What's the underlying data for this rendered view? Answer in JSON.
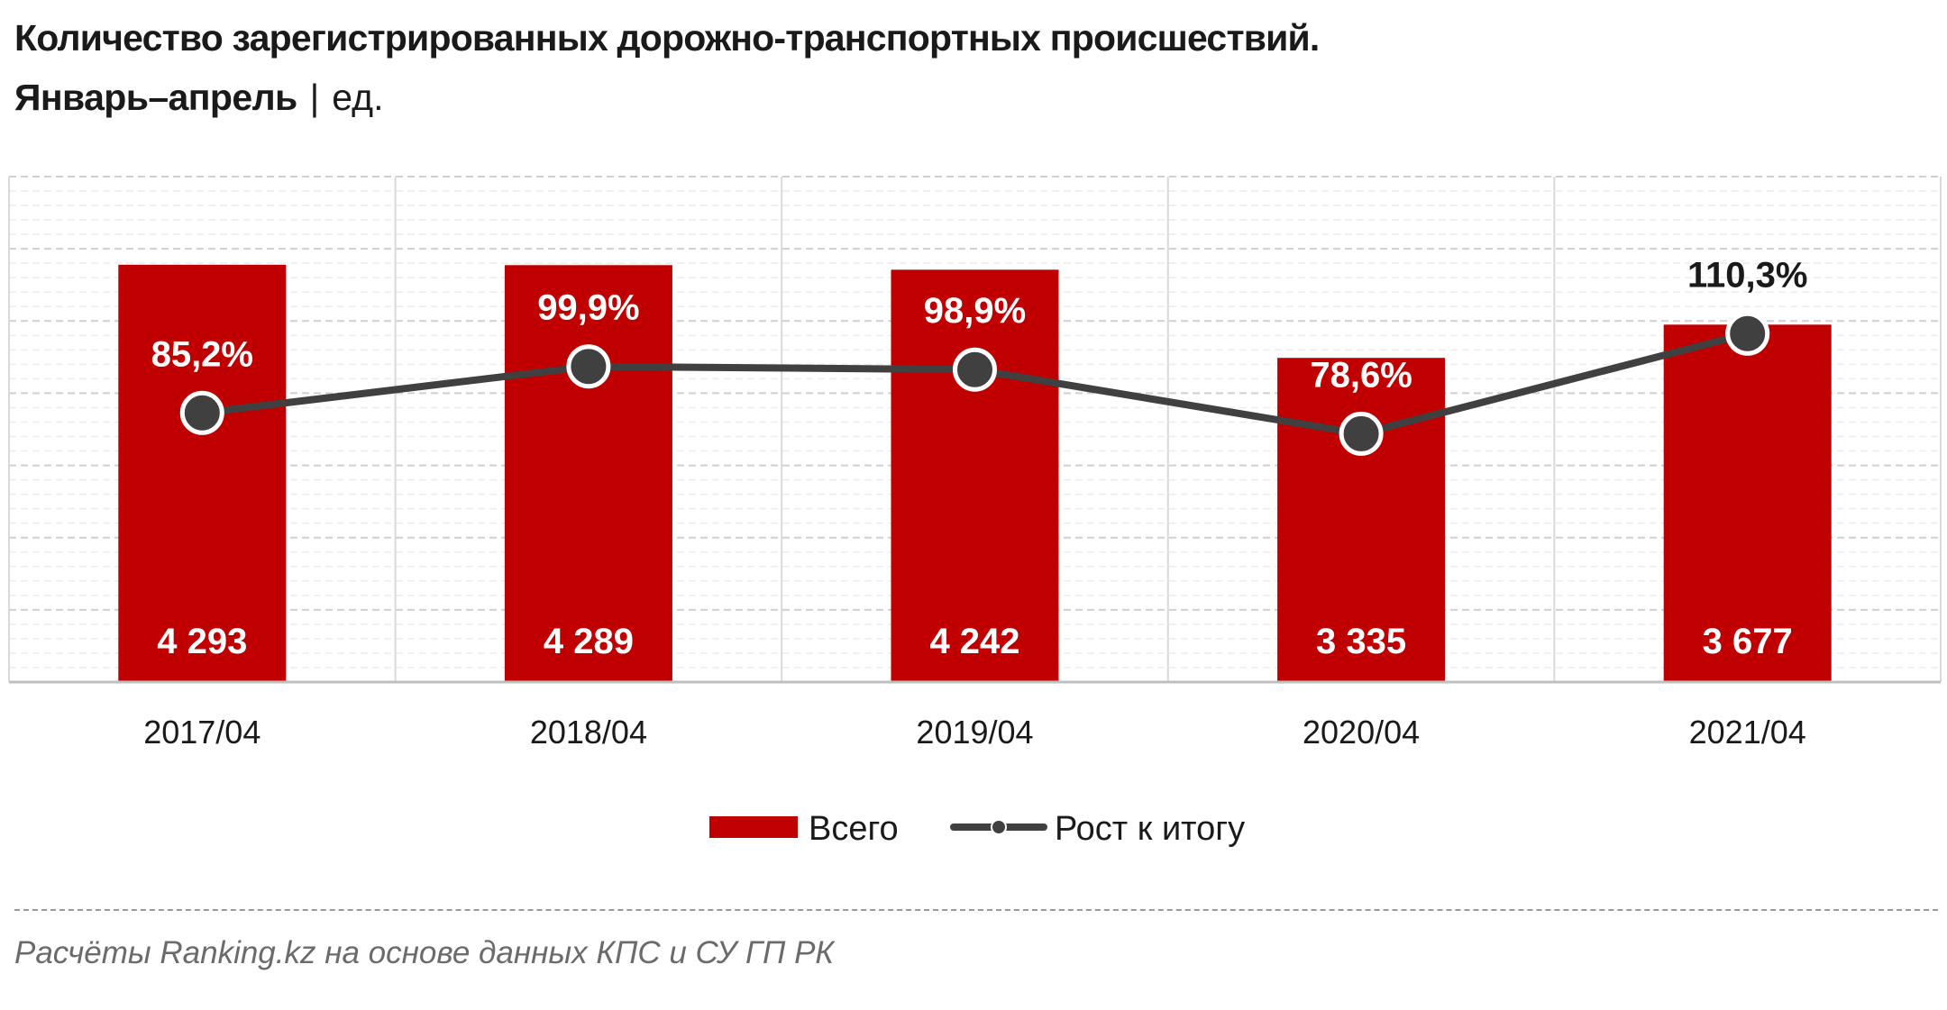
{
  "header": {
    "title": "Количество зарегистрированных дорожно-транспортных происшествий.",
    "subtitle": "Январь–апрель",
    "separator": "|",
    "unit": "ед."
  },
  "source": "Расчёты Ranking.kz на основе данных  КПС и СУ ГП РК",
  "colors": {
    "bar": "#C00000",
    "line": "#404040",
    "grid": "#d9d9d9",
    "text": "#1a1a1a",
    "bar_label": "#ffffff"
  },
  "chart_data": {
    "type": "bar",
    "categories": [
      "2017/04",
      "2018/04",
      "2019/04",
      "2020/04",
      "2021/04"
    ],
    "series": [
      {
        "name": "Всего",
        "type": "bar",
        "values": [
          4293,
          4289,
          4242,
          3335,
          3677
        ],
        "labels": [
          "4 293",
          "4 289",
          "4 242",
          "3 335",
          "3 677"
        ]
      },
      {
        "name": "Рост к итогу",
        "type": "line",
        "values": [
          85.2,
          99.9,
          98.9,
          78.6,
          110.3
        ],
        "labels": [
          "85,2%",
          "99,9%",
          "98,9%",
          "78,6%",
          "110,3%"
        ]
      }
    ],
    "ylim": [
      0,
      5200
    ],
    "y2lim": [
      0,
      160
    ],
    "grid": true,
    "legend_position": "bottom-center"
  }
}
